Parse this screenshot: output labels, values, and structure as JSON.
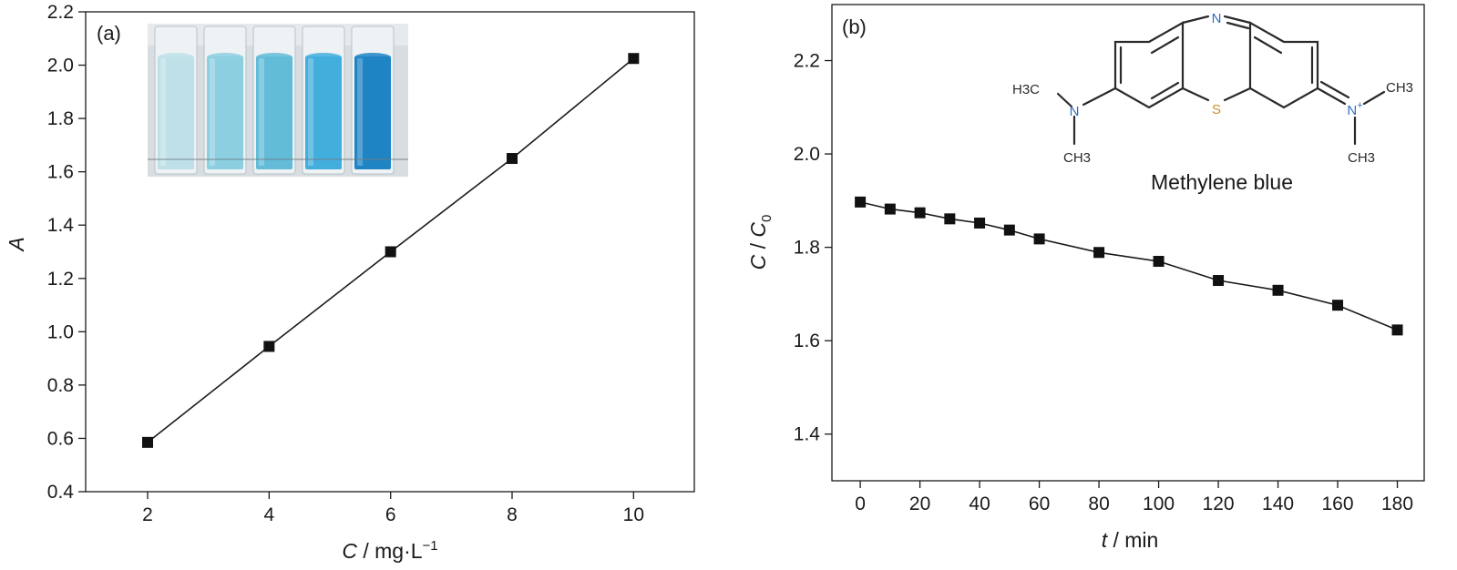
{
  "chart_data": [
    {
      "panel": "(a)",
      "type": "line",
      "x": [
        2,
        4,
        6,
        8,
        10
      ],
      "y": [
        0.585,
        0.945,
        1.3,
        1.65,
        2.025
      ],
      "xlim": [
        0.98,
        11
      ],
      "ylim": [
        0.4,
        2.2
      ],
      "xticks": [
        "2",
        "4",
        "6",
        "8",
        "10"
      ],
      "yticks": [
        "0.4",
        "0.6",
        "0.8",
        "1.0",
        "1.2",
        "1.4",
        "1.6",
        "1.8",
        "2.0",
        "2.2"
      ],
      "xlabel": {
        "var": "C",
        "rest": " / mg·L",
        "sup": "−1"
      },
      "ylabel": "A",
      "marker": "square",
      "grid": false,
      "inset": {
        "type": "photo",
        "cuvette_colors": [
          "#bfe0e8",
          "#8ccfe0",
          "#62bcd8",
          "#42aedc",
          "#1f84c4"
        ]
      }
    },
    {
      "panel": "(b)",
      "type": "line",
      "x": [
        0,
        10,
        20,
        30,
        40,
        50,
        60,
        80,
        100,
        120,
        140,
        160,
        180
      ],
      "y": [
        1.897,
        1.882,
        1.874,
        1.861,
        1.852,
        1.837,
        1.818,
        1.789,
        1.77,
        1.729,
        1.708,
        1.676,
        1.623
      ],
      "xlim": [
        -9.5,
        189
      ],
      "ylim": [
        1.3,
        2.32
      ],
      "xticks": [
        "0",
        "20",
        "40",
        "60",
        "80",
        "100",
        "120",
        "140",
        "160",
        "180"
      ],
      "yticks": [
        "1.4",
        "1.6",
        "1.8",
        "2.0",
        "2.2"
      ],
      "xlabel": {
        "var": "t",
        "rest": " / min"
      },
      "ylabel": {
        "a": "C",
        "sep": " / ",
        "b": "C",
        "sub": "0"
      },
      "marker": "square",
      "grid": false,
      "inset": {
        "type": "structure",
        "name": "Methylene blue",
        "atom_labels": {
          "n_ring": "N",
          "s_ring": "S",
          "n_left": "N",
          "n_right": "N",
          "plus": "+",
          "methyl_left_top": "H3C",
          "methyl_left_bottom": "CH3",
          "methyl_right_top": "CH3",
          "methyl_right_bottom": "CH3"
        },
        "colors": {
          "nitrogen": "#2f6cc0",
          "sulfur": "#c8902a",
          "bond": "#2a2a2a"
        }
      }
    }
  ]
}
